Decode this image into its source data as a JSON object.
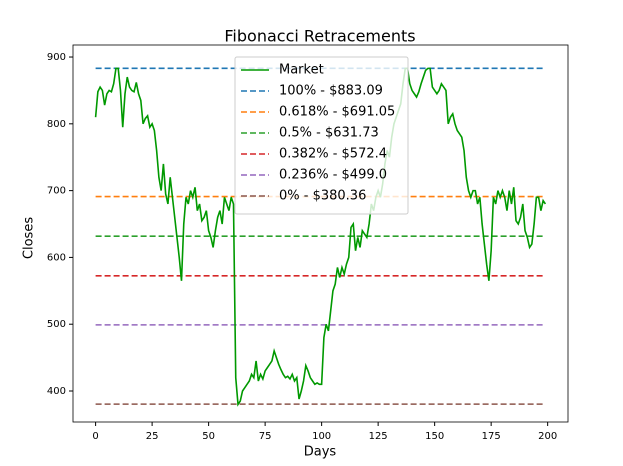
{
  "chart_data": {
    "type": "line",
    "title": "Fibonacci Retracements",
    "x_label": "Days",
    "y_label": "Closes",
    "x": [
      0,
      1,
      2,
      3,
      4,
      5,
      6,
      7,
      8,
      9,
      10,
      11,
      12,
      13,
      14,
      15,
      16,
      17,
      18,
      19,
      20,
      21,
      22,
      23,
      24,
      25,
      26,
      27,
      28,
      29,
      30,
      31,
      32,
      33,
      34,
      35,
      36,
      37,
      38,
      39,
      40,
      41,
      42,
      43,
      44,
      45,
      46,
      47,
      48,
      49,
      50,
      51,
      52,
      53,
      54,
      55,
      56,
      57,
      58,
      59,
      60,
      61,
      62,
      63,
      64,
      65,
      66,
      67,
      68,
      69,
      70,
      71,
      72,
      73,
      74,
      75,
      76,
      77,
      78,
      79,
      80,
      81,
      82,
      83,
      84,
      85,
      86,
      87,
      88,
      89,
      90,
      91,
      92,
      93,
      94,
      95,
      96,
      97,
      98,
      99,
      100,
      101,
      102,
      103,
      104,
      105,
      106,
      107,
      108,
      109,
      110,
      111,
      112,
      113,
      114,
      115,
      116,
      117,
      118,
      119,
      120,
      121,
      122,
      123,
      124,
      125,
      126,
      127,
      128,
      129,
      130,
      131,
      132,
      133,
      134,
      135,
      136,
      137,
      138,
      139,
      140,
      141,
      142,
      143,
      144,
      145,
      146,
      147,
      148,
      149,
      150,
      151,
      152,
      153,
      154,
      155,
      156,
      157,
      158,
      159,
      160,
      161,
      162,
      163,
      164,
      165,
      166,
      167,
      168,
      169,
      170,
      171,
      172,
      173,
      174,
      175,
      176,
      177,
      178,
      179,
      180,
      181,
      182,
      183,
      184,
      185,
      186,
      187,
      188,
      189,
      190,
      191,
      192,
      193,
      194,
      195,
      196,
      197,
      198,
      199
    ],
    "series": [
      {
        "name": "Market",
        "color": "#009900",
        "values": [
          810,
          848,
          855,
          850,
          828,
          845,
          850,
          848,
          860,
          883,
          883,
          850,
          795,
          845,
          870,
          855,
          850,
          848,
          862,
          845,
          835,
          800,
          808,
          812,
          795,
          800,
          790,
          760,
          720,
          700,
          740,
          695,
          680,
          720,
          690,
          660,
          630,
          600,
          565,
          650,
          690,
          680,
          700,
          690,
          705,
          670,
          680,
          655,
          660,
          670,
          640,
          630,
          615,
          640,
          660,
          670,
          650,
          690,
          680,
          670,
          690,
          680,
          420,
          380,
          385,
          400,
          405,
          410,
          415,
          425,
          420,
          445,
          415,
          425,
          418,
          430,
          435,
          440,
          445,
          460,
          450,
          440,
          432,
          425,
          420,
          422,
          418,
          425,
          415,
          420,
          388,
          400,
          415,
          438,
          430,
          420,
          415,
          410,
          412,
          410,
          410,
          480,
          500,
          490,
          520,
          550,
          560,
          585,
          570,
          585,
          575,
          590,
          600,
          645,
          650,
          610,
          630,
          615,
          640,
          635,
          630,
          650,
          680,
          670,
          690,
          700,
          690,
          710,
          740,
          760,
          750,
          780,
          800,
          810,
          820,
          830,
          860,
          883,
          883,
          860,
          850,
          845,
          840,
          848,
          860,
          870,
          880,
          883,
          883,
          855,
          850,
          845,
          850,
          860,
          855,
          850,
          800,
          810,
          815,
          800,
          790,
          785,
          780,
          760,
          720,
          700,
          690,
          700,
          700,
          680,
          690,
          650,
          620,
          590,
          565,
          610,
          690,
          680,
          700,
          690,
          700,
          690,
          670,
          700,
          680,
          705,
          655,
          650,
          660,
          680,
          640,
          630,
          615,
          620,
          650,
          690,
          690,
          670,
          685,
          680
        ]
      }
    ],
    "levels": [
      {
        "name": "100% - $883.09",
        "value": 883.09,
        "color": "#1f77b4"
      },
      {
        "name": "0.618% - $691.05",
        "value": 691.05,
        "color": "#ff7f0e"
      },
      {
        "name": "0.5% - $631.73",
        "value": 631.73,
        "color": "#2ca02c"
      },
      {
        "name": "0.382% - $572.4",
        "value": 572.4,
        "color": "#d62728"
      },
      {
        "name": "0.236% - $499.0",
        "value": 499.0,
        "color": "#9467bd"
      },
      {
        "name": "0% - $380.36",
        "value": 380.36,
        "color": "#8c564b"
      }
    ],
    "xlim": [
      -10,
      209
    ],
    "ylim": [
      353.6,
      918
    ],
    "xticks": [
      0,
      25,
      50,
      75,
      100,
      125,
      150,
      175,
      200
    ],
    "yticks": [
      400,
      500,
      600,
      700,
      800,
      900
    ],
    "legend": "upper center"
  }
}
